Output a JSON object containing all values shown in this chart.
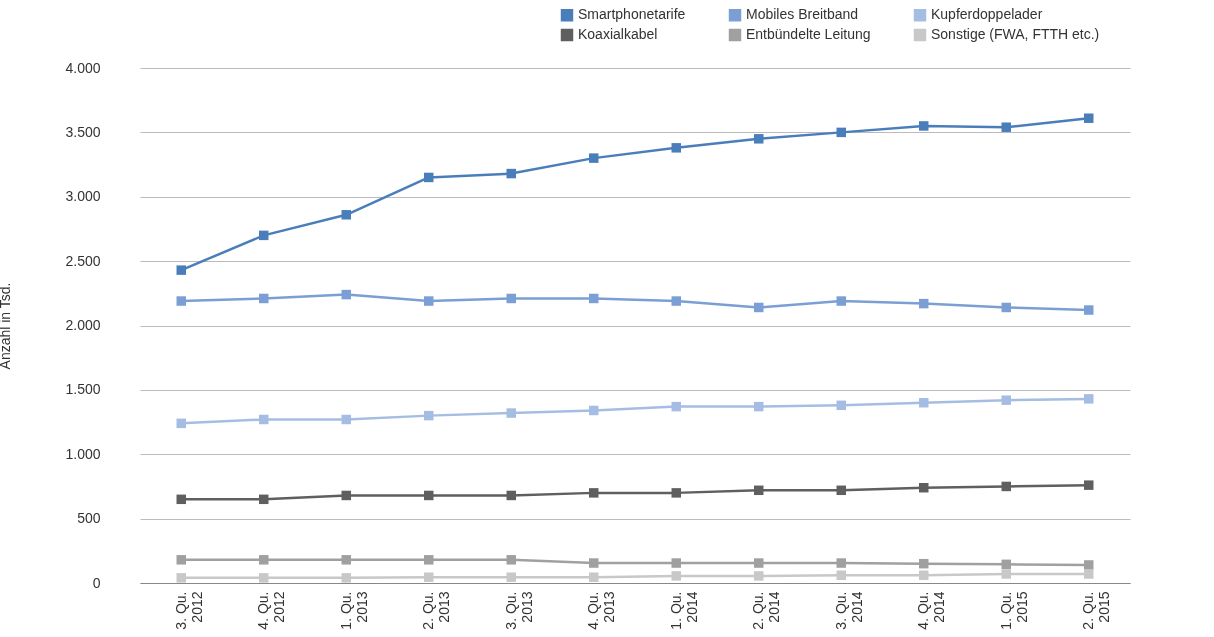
{
  "chart_data": {
    "type": "line",
    "ylabel": "Anzahl in Tsd.",
    "categories": [
      "3. Qu.\n2012",
      "4. Qu.\n2012",
      "1. Qu.\n2013",
      "2. Qu.\n2013",
      "3. Qu.\n2013",
      "4. Qu.\n2013",
      "1. Qu.\n2014",
      "2. Qu.\n2014",
      "3. Qu.\n2014",
      "4. Qu.\n2014",
      "1. Qu.\n2015",
      "2. Qu.\n2015"
    ],
    "series": [
      {
        "name": "Smartphonetarife",
        "color": "#4a7ebb",
        "values": [
          2430,
          2700,
          2860,
          3150,
          3180,
          3300,
          3380,
          3450,
          3500,
          3550,
          3540,
          3610
        ]
      },
      {
        "name": "Mobiles Breitband",
        "color": "#7b9fd5",
        "values": [
          2190,
          2210,
          2240,
          2190,
          2210,
          2210,
          2190,
          2140,
          2190,
          2170,
          2140,
          2120
        ]
      },
      {
        "name": "Kupferdoppelader",
        "color": "#a6bde3",
        "values": [
          1240,
          1270,
          1270,
          1300,
          1320,
          1340,
          1370,
          1370,
          1380,
          1400,
          1420,
          1430
        ]
      },
      {
        "name": "Koaxialkabel",
        "color": "#5f5f5f",
        "values": [
          650,
          650,
          680,
          680,
          680,
          700,
          700,
          720,
          720,
          740,
          750,
          760
        ]
      },
      {
        "name": "Entbündelte Leitung",
        "color": "#a0a0a0",
        "values": [
          180,
          180,
          180,
          180,
          180,
          155,
          155,
          155,
          155,
          150,
          145,
          140
        ]
      },
      {
        "name": "Sonstige (FWA, FTTH etc.)",
        "color": "#c8c8c8",
        "values": [
          40,
          40,
          40,
          45,
          45,
          45,
          55,
          55,
          60,
          60,
          70,
          70
        ]
      }
    ],
    "ylim": [
      0,
      4000
    ],
    "yticks": [
      {
        "value": 0,
        "label": "0"
      },
      {
        "value": 500,
        "label": "500"
      },
      {
        "value": 1000,
        "label": "1.000"
      },
      {
        "value": 1500,
        "label": "1.500"
      },
      {
        "value": 2000,
        "label": "2.000"
      },
      {
        "value": 2500,
        "label": "2.500"
      },
      {
        "value": 3000,
        "label": "3.000"
      },
      {
        "value": 3500,
        "label": "3.500"
      },
      {
        "value": 4000,
        "label": "4.000"
      }
    ],
    "grid": "y",
    "legend": "top right",
    "marker": "square",
    "line_style": "solid"
  }
}
